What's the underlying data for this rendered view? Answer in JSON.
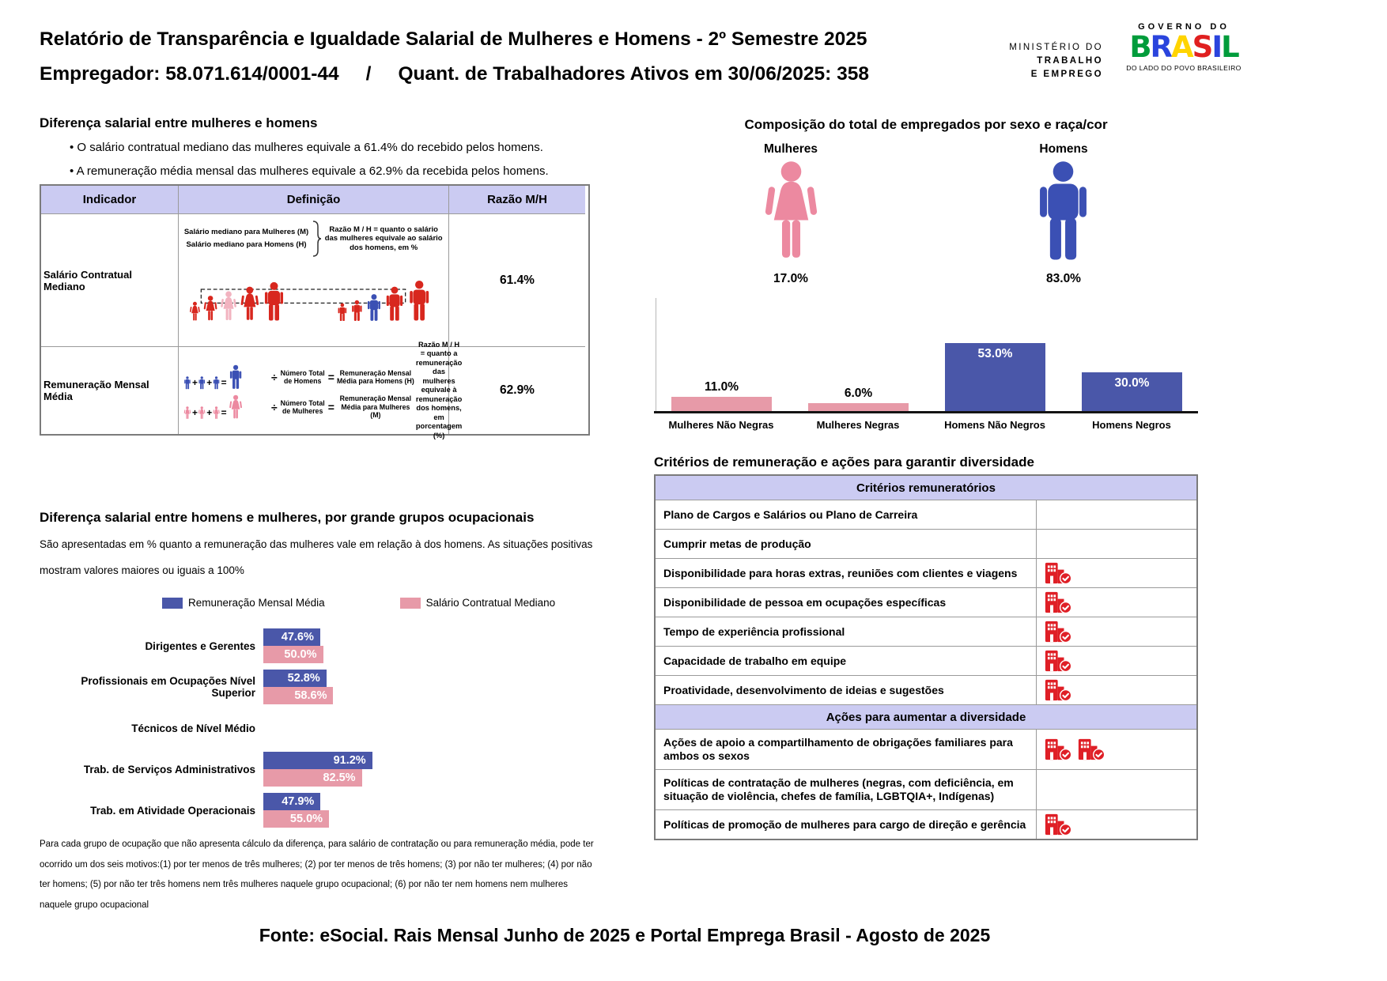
{
  "header": {
    "title": "Relatório de Transparência e Igualdade Salarial de Mulheres e Homens - 2º Semestre 2025",
    "employer_line": "Empregador: 58.071.614/0001-44     /     Quant. de Trabalhadores Ativos em 30/06/2025: 358",
    "ministry_lines": [
      "MINISTÉRIO DO",
      "TRABALHO",
      "E EMPREGO"
    ],
    "gov_label": "GOVERNO DO",
    "brasil_letters": [
      "B",
      "R",
      "A",
      "S",
      "I",
      "L"
    ],
    "gov_tagline": "DO LADO DO POVO BRASILEIRO"
  },
  "ops": {
    "plus": "+",
    "equals": "=",
    "divide": "÷"
  },
  "salary_gap": {
    "title": "Diferença salarial entre mulheres e homens",
    "bullets": [
      "• O salário contratual mediano das mulheres equivale a 61.4% do recebido pelos homens.",
      "• A remuneração média mensal das mulheres equivale a 62.9% da recebida pelos homens."
    ],
    "table": {
      "headers": [
        "Indicador",
        "Definição",
        "Razão M/H"
      ],
      "row1": {
        "indicator": "Salário Contratual Mediano",
        "def_label_women": "Salário mediano para Mulheres (M)",
        "def_label_men": "Salário mediano para Homens (H)",
        "def_note": "Razão M / H = quanto o salário das mulheres equivale ao salário dos homens, em %",
        "ratio": "61.4%"
      },
      "row2": {
        "indicator": "Remuneração Mensal Média",
        "num_men": "Número Total de Homens",
        "rem_men": "Remuneração Mensal Média para Homens (H)",
        "num_women": "Número Total de Mulheres",
        "rem_women": "Remuneração Mensal Média para Mulheres (M)",
        "def_note": "Razão M / H = quanto a remuneração das mulheres equivale à remuneração dos homens, em porcentagem (%)",
        "ratio": "62.9%"
      }
    }
  },
  "composition": {
    "title": "Composição do total de empregados por sexo e raça/cor",
    "female_label": "Mulheres",
    "female_pct": "17.0%",
    "male_label": "Homens",
    "male_pct": "83.0%"
  },
  "occupational": {
    "title": "Diferença salarial entre homens e mulheres, por grande grupos ocupacionais",
    "desc_line1": "São apresentadas em % quanto a remuneração das mulheres vale em relação à dos homens. As situações positivas",
    "desc_line2": "mostram valores maiores ou iguais a 100%",
    "footnote": "Para cada grupo de ocupação que não apresenta cálculo da diferença, para salário de contratação ou para remuneração média, pode ter ocorrido um dos seis motivos:(1) por ter menos de três mulheres; (2) por ter menos de três homens; (3) por não ter mulheres; (4) por não ter homens; (5) por não ter três homens nem três mulheres naquele grupo ocupacional; (6) por não ter nem homens nem mulheres naquele grupo ocupacional"
  },
  "criteria": {
    "title": "Critérios de remuneração e ações para garantir diversidade",
    "sections": [
      {
        "header": "Critérios remuneratórios",
        "rows": [
          {
            "label": "Plano de Cargos e Salários ou Plano de Carreira",
            "icons": 0
          },
          {
            "label": "Cumprir metas de produção",
            "icons": 0
          },
          {
            "label": "Disponibilidade para horas extras, reuniões com clientes e viagens",
            "icons": 1
          },
          {
            "label": "Disponibilidade de pessoa em ocupações específicas",
            "icons": 1
          },
          {
            "label": "Tempo de experiência profissional",
            "icons": 1
          },
          {
            "label": "Capacidade de trabalho em equipe",
            "icons": 1
          },
          {
            "label": "Proatividade, desenvolvimento de ideias e sugestões",
            "icons": 1
          }
        ]
      },
      {
        "header": "Ações para aumentar a diversidade",
        "rows": [
          {
            "label": "Ações de apoio a compartilhamento de obrigações familiares para ambos os sexos",
            "icons": 2
          },
          {
            "label": "Políticas de contratação de mulheres (negras, com deficiência, em situação de violência, chefes de família, LGBTQIA+, Indígenas)",
            "icons": 0
          },
          {
            "label": "Políticas de promoção de mulheres para cargo de direção e gerência",
            "icons": 1
          }
        ]
      }
    ]
  },
  "footer": "Fonte: eSocial. Rais Mensal Junho de 2025 e Portal Emprega Brasil - Agosto de 2025",
  "icons": {
    "criteria_check": "building-check-icon",
    "female": "female-person-icon",
    "male": "male-person-icon"
  },
  "colors": {
    "lavender": "#cbcbf2",
    "blue": "#4a57a9",
    "pink": "#e79aa8",
    "red_figures": "#d8271e",
    "icon_red": "#df1f26"
  },
  "chart_data": [
    {
      "id": "composition_by_sex_race",
      "type": "bar",
      "title": "Composição do total de empregados por sexo e raça/cor",
      "categories": [
        "Mulheres Não Negras",
        "Mulheres Negras",
        "Homens Não Negros",
        "Homens Negros"
      ],
      "values": [
        11.0,
        6.0,
        53.0,
        30.0
      ],
      "data_labels": [
        "11.0%",
        "6.0%",
        "53.0%",
        "30.0%"
      ],
      "colors": [
        "#e79aa8",
        "#e79aa8",
        "#4a57a9",
        "#4a57a9"
      ],
      "xlabel": "",
      "ylabel": "",
      "ylim": [
        0,
        60
      ],
      "grid": false,
      "legend": "none",
      "extra": {
        "female_total": 17.0,
        "male_total": 83.0
      }
    },
    {
      "id": "gap_by_occupation_group",
      "type": "bar",
      "orientation": "horizontal",
      "title": "Diferença salarial entre homens e mulheres, por grande grupos ocupacionais",
      "categories": [
        "Dirigentes e Gerentes",
        "Profissionais em Ocupações Nível Superior",
        "Técnicos de Nível Médio",
        "Trab. de Serviços Administrativos",
        "Trab. em Atividade Operacionais"
      ],
      "series": [
        {
          "name": "Remuneração Mensal Média",
          "color": "#4a57a9",
          "values": [
            47.6,
            52.8,
            null,
            91.2,
            47.9
          ],
          "data_labels": [
            "47.6%",
            "52.8%",
            "",
            "91.2%",
            "47.9%"
          ]
        },
        {
          "name": "Salário Contratual Mediano",
          "color": "#e79aa8",
          "values": [
            50.0,
            58.6,
            null,
            82.5,
            55.0
          ],
          "data_labels": [
            "50.0%",
            "58.6%",
            "",
            "82.5%",
            "55.0%"
          ]
        }
      ],
      "xlim": [
        0,
        100
      ],
      "grid": false,
      "legend_position": "top"
    }
  ]
}
